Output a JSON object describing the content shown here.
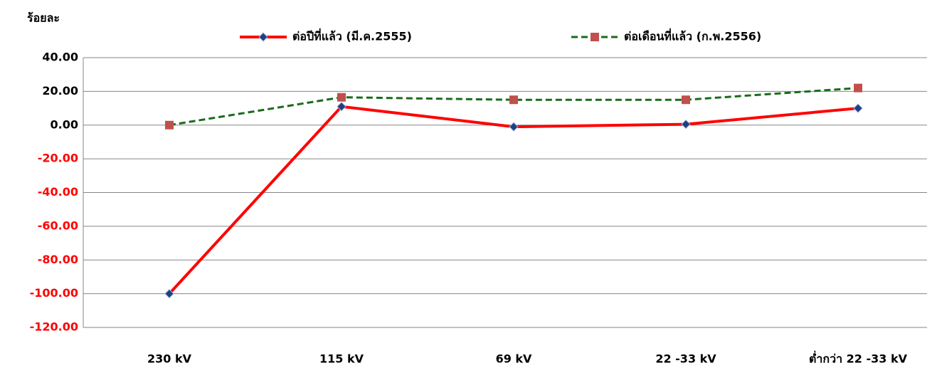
{
  "chart_data": {
    "type": "line",
    "ylabel": "ร้อยละ",
    "categories": [
      "230 kV",
      "115 kV",
      "69 kV",
      "22 -33 kV",
      "ต่ำกว่า 22 -33 kV"
    ],
    "series": [
      {
        "name": "ต่อปีที่แล้ว (มี.ค.2555)",
        "color": "#ff0000",
        "marker": "diamond",
        "marker_color": "#1f3f7f",
        "dash": false,
        "values": [
          -100,
          11,
          -1,
          0.5,
          10
        ]
      },
      {
        "name": "ต่อเดือนที่แล้ว (ก.พ.2556)",
        "color": "#1a6b1a",
        "marker": "square",
        "marker_color": "#c0504d",
        "dash": true,
        "values": [
          0,
          16.5,
          15,
          15,
          22
        ]
      }
    ],
    "ylim": [
      -120,
      40
    ],
    "yticks": [
      {
        "value": 40,
        "label": "40.00"
      },
      {
        "value": 20,
        "label": "20.00"
      },
      {
        "value": 0,
        "label": "0.00"
      },
      {
        "value": -20,
        "label": "-20.00"
      },
      {
        "value": -40,
        "label": "-40.00"
      },
      {
        "value": -60,
        "label": "-60.00"
      },
      {
        "value": -80,
        "label": "-80.00"
      },
      {
        "value": -100,
        "label": "-100.00"
      },
      {
        "value": -120,
        "label": "-120.00"
      }
    ],
    "negative_tick_label_color": "#ff0000",
    "grid": true,
    "legend": "top"
  }
}
